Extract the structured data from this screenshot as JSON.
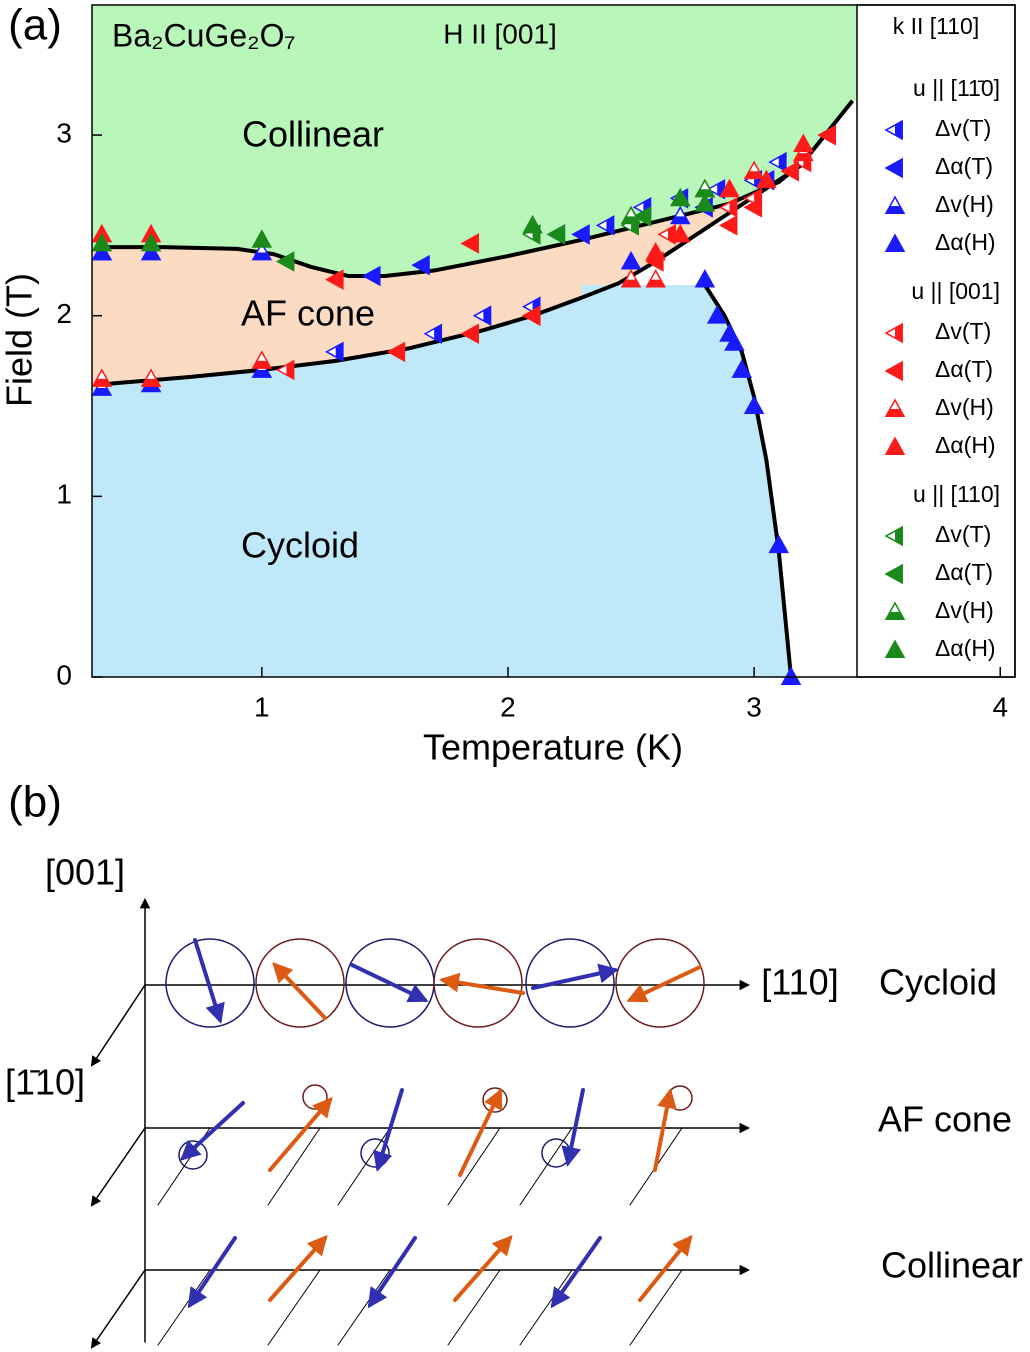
{
  "chart_data": {
    "type": "scatter",
    "panel_label": "(a)",
    "formula": "Ba₂CuGe₂O₇",
    "field_direction": "H II [001]",
    "wave_vector": "k II [110]",
    "phase_labels": [
      "Collinear",
      "AF cone",
      "Cycloid"
    ],
    "phase_colors": [
      "#b9f6b9",
      "#fbdcc2",
      "#bfe9f8"
    ],
    "x_label": "Temperature (K)",
    "y_label": "Field (T)",
    "xlim": [
      0.31,
      4.06
    ],
    "ylim": [
      0,
      3.72
    ],
    "xticks": [
      1,
      2,
      3,
      4
    ],
    "yticks": [
      0,
      1,
      2,
      3
    ],
    "legend_groups": [
      "u || [11̄0]",
      "u || [001]",
      "u || [110]"
    ],
    "boundaries": [
      {
        "color": "#000000",
        "x": [
          0.35,
          0.6,
          0.9,
          1.05,
          1.2,
          1.35,
          1.5,
          1.7,
          2.0,
          2.3,
          2.6,
          2.9,
          3.1,
          3.2,
          3.4
        ],
        "values": [
          2.38,
          2.38,
          2.37,
          2.34,
          2.27,
          2.22,
          2.22,
          2.25,
          2.33,
          2.42,
          2.52,
          2.62,
          2.74,
          2.85,
          3.19
        ]
      },
      {
        "color": "#000000",
        "x": [
          0.35,
          0.7,
          1.0,
          1.3,
          1.6,
          1.9,
          2.1,
          2.3,
          2.45,
          2.6,
          2.8,
          3.0,
          3.2
        ],
        "values": [
          1.62,
          1.66,
          1.7,
          1.75,
          1.82,
          1.92,
          2.0,
          2.1,
          2.18,
          2.3,
          2.48,
          2.66,
          2.84
        ]
      },
      {
        "color": "#000000",
        "x": [
          2.8,
          2.88,
          2.95,
          3.0,
          3.05,
          3.1,
          3.15
        ],
        "values": [
          2.17,
          2.0,
          1.8,
          1.55,
          1.2,
          0.7,
          0
        ]
      }
    ],
    "series": [
      {
        "name": "Δv(T)",
        "color": "#1a1aff",
        "marker": "left-half",
        "x": [
          1.3,
          1.7,
          1.9,
          2.1,
          2.2,
          2.4,
          2.55,
          2.7,
          2.85,
          3.0,
          3.1
        ],
        "values": [
          1.8,
          1.9,
          2.0,
          2.05,
          2.45,
          2.5,
          2.6,
          2.65,
          2.7,
          2.75,
          2.85
        ]
      },
      {
        "name": "Δα(T)",
        "color": "#1a1aff",
        "marker": "left",
        "x": [
          1.45,
          1.65,
          2.3,
          2.8,
          3.05,
          3.3
        ],
        "values": [
          2.22,
          2.28,
          2.45,
          2.6,
          2.75,
          3.0
        ]
      },
      {
        "name": "Δv(H)",
        "color": "#1a1aff",
        "marker": "up-half",
        "x": [
          0.35,
          0.55,
          1.0,
          0.35,
          1.0,
          2.7
        ],
        "values": [
          1.6,
          1.62,
          1.7,
          2.35,
          2.35,
          2.55
        ]
      },
      {
        "name": "Δα(H)",
        "color": "#1a1aff",
        "marker": "up",
        "x": [
          0.35,
          0.55,
          2.5,
          2.8,
          2.85,
          2.9,
          2.92,
          2.95,
          3.0,
          3.1,
          3.15
        ],
        "values": [
          2.35,
          2.35,
          2.3,
          2.2,
          2.0,
          1.9,
          1.85,
          1.7,
          1.5,
          0.73,
          0
        ]
      },
      {
        "name": "Δv(T)",
        "color": "#ff1a1a",
        "marker": "left-half",
        "x": [
          1.1,
          2.1,
          2.65,
          2.9,
          3.0,
          3.2
        ],
        "values": [
          1.7,
          2.0,
          2.45,
          2.6,
          2.65,
          2.85
        ]
      },
      {
        "name": "Δα(T)",
        "color": "#ff1a1a",
        "marker": "left",
        "x": [
          1.3,
          1.55,
          1.85,
          1.85,
          2.1,
          2.6,
          2.9,
          3.0,
          3.15,
          3.3
        ],
        "values": [
          2.2,
          1.8,
          1.9,
          2.4,
          2.0,
          2.3,
          2.5,
          2.6,
          2.8,
          3.0
        ]
      },
      {
        "name": "Δv(H)",
        "color": "#ff1a1a",
        "marker": "up-half",
        "x": [
          0.35,
          0.55,
          1.0,
          2.5,
          2.6,
          2.8,
          3.0,
          3.2
        ],
        "values": [
          1.65,
          1.65,
          1.75,
          2.2,
          2.2,
          2.7,
          2.8,
          2.9
        ]
      },
      {
        "name": "Δα(H)",
        "color": "#ff1a1a",
        "marker": "up",
        "x": [
          0.35,
          0.55,
          2.5,
          2.6,
          2.7,
          2.9,
          3.05,
          3.2
        ],
        "values": [
          2.45,
          2.45,
          2.55,
          2.35,
          2.45,
          2.7,
          2.75,
          2.95
        ]
      },
      {
        "name": "Δv(T)",
        "color": "#1a8a1a",
        "marker": "left-half",
        "x": [
          2.1,
          2.5
        ],
        "values": [
          2.45,
          2.5
        ]
      },
      {
        "name": "Δα(T)",
        "color": "#1a8a1a",
        "marker": "left",
        "x": [
          1.1,
          2.2,
          2.55
        ],
        "values": [
          2.3,
          2.45,
          2.55
        ]
      },
      {
        "name": "Δv(H)",
        "color": "#1a8a1a",
        "marker": "up-half",
        "x": [
          2.8,
          2.5
        ],
        "values": [
          2.7,
          2.55
        ]
      },
      {
        "name": "Δα(H)",
        "color": "#1a8a1a",
        "marker": "up",
        "x": [
          0.35,
          0.55,
          1.0,
          2.1,
          2.7,
          2.8
        ],
        "values": [
          2.4,
          2.4,
          2.42,
          2.5,
          2.65,
          2.62
        ]
      }
    ]
  },
  "schematic": {
    "panel_label": "(b)",
    "axes": {
      "vertical": "[001]",
      "horizontal": "[110]",
      "depth": "[1̄10]"
    },
    "phases": [
      "Cycloid",
      "AF cone",
      "Collinear"
    ]
  }
}
